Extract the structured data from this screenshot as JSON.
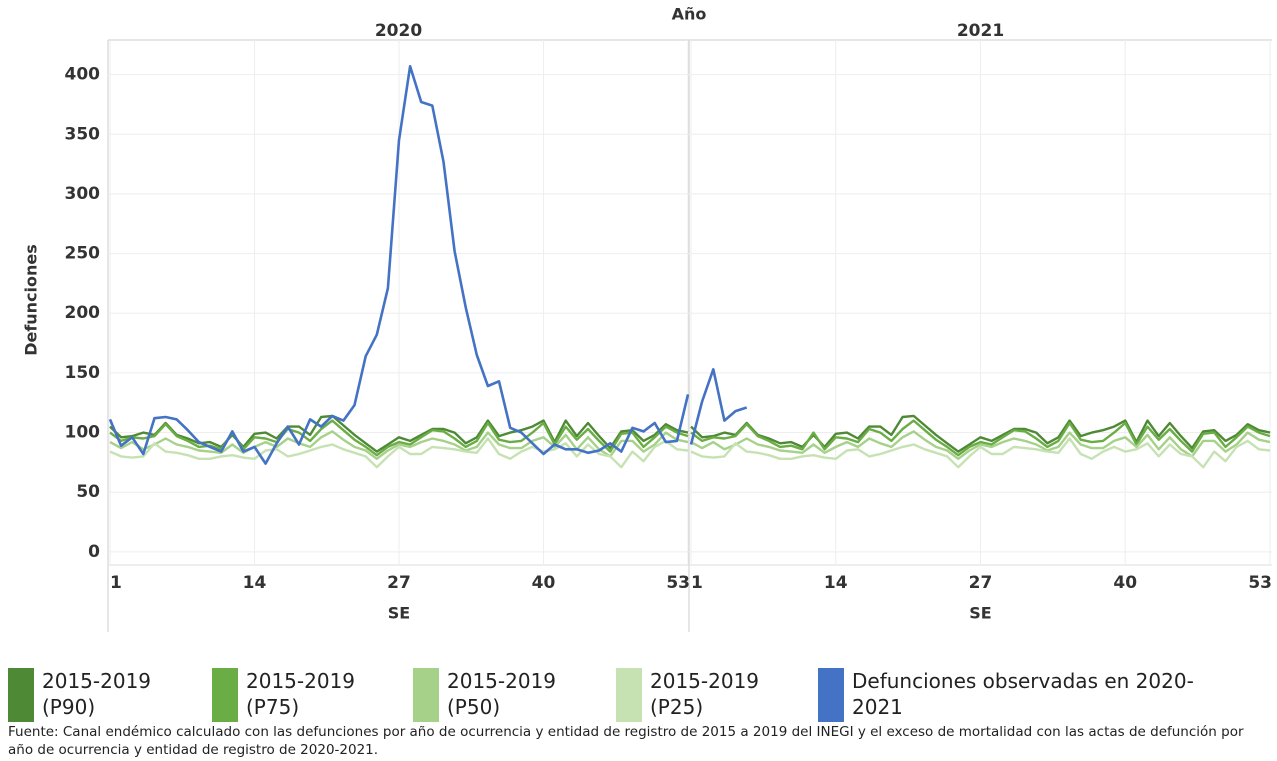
{
  "chart_data": {
    "type": "line",
    "facet_label": "Año",
    "y_label": "Defunciones",
    "x_label": "SE",
    "ylim": [
      -11,
      429
    ],
    "yticks": [
      0,
      50,
      100,
      150,
      200,
      250,
      300,
      350,
      400
    ],
    "xlim": [
      1,
      53
    ],
    "xticks": [
      1,
      14,
      27,
      40,
      53
    ],
    "grid": true,
    "x": [
      1,
      2,
      3,
      4,
      5,
      6,
      7,
      8,
      9,
      10,
      11,
      12,
      13,
      14,
      15,
      16,
      17,
      18,
      19,
      20,
      21,
      22,
      23,
      24,
      25,
      26,
      27,
      28,
      29,
      30,
      31,
      32,
      33,
      34,
      35,
      36,
      37,
      38,
      39,
      40,
      41,
      42,
      43,
      44,
      45,
      46,
      47,
      48,
      49,
      50,
      51,
      52,
      53
    ],
    "panels": [
      {
        "title": "2020",
        "series": [
          {
            "name": "2015-2019 (P90)",
            "color": "#4e8a35",
            "values": [
              105,
              96,
              97,
              100,
              98,
              108,
              98,
              95,
              91,
              92,
              88,
              98,
              88,
              99,
              100,
              95,
              105,
              105,
              98,
              113,
              114,
              106,
              98,
              91,
              84,
              90,
              96,
              93,
              98,
              103,
              103,
              100,
              91,
              96,
              110,
              97,
              100,
              102,
              105,
              110,
              92,
              110,
              97,
              108,
              97,
              87,
              101,
              102,
              93,
              98,
              107,
              102,
              100
            ]
          },
          {
            "name": "2015-2019 (P75)",
            "color": "#6aad45",
            "values": [
              100,
              93,
              96,
              95,
              97,
              107,
              97,
              93,
              88,
              89,
              86,
              100,
              86,
              96,
              95,
              92,
              103,
              100,
              93,
              103,
              110,
              102,
              94,
              88,
              81,
              88,
              92,
              90,
              96,
              102,
              101,
              95,
              88,
              93,
              108,
              94,
              92,
              93,
              100,
              108,
              90,
              105,
              94,
              103,
              93,
              84,
              99,
              100,
              88,
              96,
              105,
              100,
              97
            ]
          },
          {
            "name": "2015-2019 (P50)",
            "color": "#a6d189",
            "values": [
              92,
              87,
              92,
              86,
              90,
              95,
              90,
              88,
              85,
              84,
              83,
              90,
              83,
              88,
              92,
              88,
              95,
              91,
              88,
              96,
              101,
              94,
              88,
              85,
              78,
              85,
              90,
              88,
              92,
              95,
              93,
              90,
              85,
              88,
              100,
              90,
              87,
              87,
              93,
              96,
              88,
              98,
              86,
              96,
              86,
              80,
              93,
              93,
              84,
              90,
              100,
              94,
              92
            ]
          },
          {
            "name": "2015-2019 (P25)",
            "color": "#c6e2b3",
            "values": [
              84,
              80,
              79,
              80,
              91,
              84,
              83,
              81,
              78,
              78,
              80,
              81,
              79,
              78,
              85,
              86,
              80,
              82,
              85,
              88,
              90,
              86,
              83,
              80,
              71,
              80,
              88,
              82,
              82,
              88,
              87,
              86,
              84,
              83,
              95,
              82,
              78,
              84,
              88,
              84,
              86,
              91,
              80,
              90,
              82,
              80,
              71,
              84,
              76,
              88,
              93,
              86,
              85
            ]
          },
          {
            "name": "Defunciones observadas en 2020-2021",
            "color": "#4472c4",
            "values": [
              111,
              89,
              96,
              82,
              112,
              113,
              111,
              102,
              92,
              88,
              84,
              101,
              84,
              88,
              74,
              91,
              105,
              90,
              111,
              105,
              114,
              110,
              123,
              164,
              182,
              221,
              345,
              407,
              377,
              374,
              327,
              252,
              205,
              165,
              139,
              143,
              104,
              100,
              91,
              82,
              90,
              86,
              86,
              83,
              85,
              91,
              84,
              104,
              101,
              108,
              92,
              93,
              132
            ]
          }
        ]
      },
      {
        "title": "2021",
        "series": [
          {
            "name": "2015-2019 (P90)",
            "color": "#4e8a35",
            "values": [
              105,
              96,
              97,
              100,
              98,
              108,
              98,
              95,
              91,
              92,
              88,
              98,
              88,
              99,
              100,
              95,
              105,
              105,
              98,
              113,
              114,
              106,
              98,
              91,
              84,
              90,
              96,
              93,
              98,
              103,
              103,
              100,
              91,
              96,
              110,
              97,
              100,
              102,
              105,
              110,
              92,
              110,
              97,
              108,
              97,
              87,
              101,
              102,
              93,
              98,
              107,
              102,
              100
            ]
          },
          {
            "name": "2015-2019 (P75)",
            "color": "#6aad45",
            "values": [
              100,
              93,
              96,
              95,
              97,
              107,
              97,
              93,
              88,
              89,
              86,
              100,
              86,
              96,
              95,
              92,
              103,
              100,
              93,
              103,
              110,
              102,
              94,
              88,
              81,
              88,
              92,
              90,
              96,
              102,
              101,
              95,
              88,
              93,
              108,
              94,
              92,
              93,
              100,
              108,
              90,
              105,
              94,
              103,
              93,
              84,
              99,
              100,
              88,
              96,
              105,
              100,
              97
            ]
          },
          {
            "name": "2015-2019 (P50)",
            "color": "#a6d189",
            "values": [
              92,
              87,
              92,
              86,
              90,
              95,
              90,
              88,
              85,
              84,
              83,
              90,
              83,
              88,
              92,
              88,
              95,
              91,
              88,
              96,
              101,
              94,
              88,
              85,
              78,
              85,
              90,
              88,
              92,
              95,
              93,
              90,
              85,
              88,
              100,
              90,
              87,
              87,
              93,
              96,
              88,
              98,
              86,
              96,
              86,
              80,
              93,
              93,
              84,
              90,
              100,
              94,
              92
            ]
          },
          {
            "name": "2015-2019 (P25)",
            "color": "#c6e2b3",
            "values": [
              84,
              80,
              79,
              80,
              91,
              84,
              83,
              81,
              78,
              78,
              80,
              81,
              79,
              78,
              85,
              86,
              80,
              82,
              85,
              88,
              90,
              86,
              83,
              80,
              71,
              80,
              88,
              82,
              82,
              88,
              87,
              86,
              84,
              83,
              95,
              82,
              78,
              84,
              88,
              84,
              86,
              91,
              80,
              90,
              82,
              80,
              71,
              84,
              76,
              88,
              93,
              86,
              85
            ]
          },
          {
            "name": "Defunciones observadas en 2020-2021",
            "color": "#4472c4",
            "values": [
              90,
              126,
              153,
              110,
              118,
              121,
              null,
              null,
              null,
              null,
              null,
              null,
              null,
              null,
              null,
              null,
              null,
              null,
              null,
              null,
              null,
              null,
              null,
              null,
              null,
              null,
              null,
              null,
              null,
              null,
              null,
              null,
              null,
              null,
              null,
              null,
              null,
              null,
              null,
              null,
              null,
              null,
              null,
              null,
              null,
              null,
              null,
              null,
              null,
              null,
              null,
              null,
              null
            ]
          }
        ]
      }
    ],
    "source": "Fuente: Canal endémico calculado con las defunciones por año de ocurrencia y entidad de registro de 2015 a 2019 del INEGI y el exceso de mortalidad con las actas de defunción por año de ocurrencia y entidad de registro de 2020-2021."
  }
}
